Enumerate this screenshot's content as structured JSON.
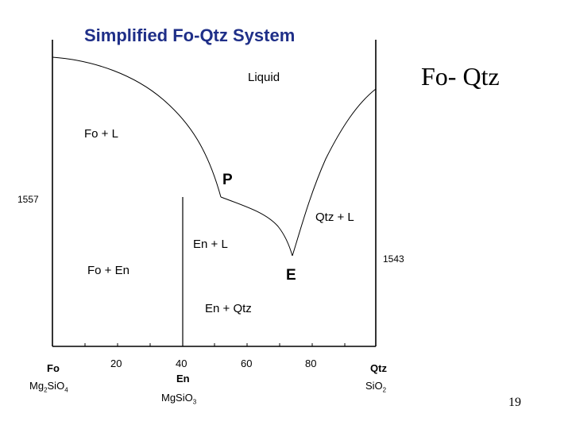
{
  "diagram": {
    "title": "Simplified Fo-Qtz System",
    "fields": {
      "liquid": "Liquid",
      "fo_l": "Fo + L",
      "en_l": "En + L",
      "fo_en": "Fo + En",
      "en_qtz": "En + Qtz",
      "qtz_l": "Qtz + L"
    },
    "points": {
      "peritectic": "P",
      "eutectic": "E"
    },
    "temperatures": {
      "left": "1557",
      "right": "1543"
    },
    "x_ticks": [
      "20",
      "40",
      "60",
      "80"
    ],
    "end_members": {
      "fo": {
        "name": "Fo",
        "formula_main": "Mg",
        "formula_sub1": "2",
        "formula_mid": "SiO",
        "formula_sub2": "4"
      },
      "en": {
        "name": "En",
        "formula_main": "MgSiO",
        "formula_sub": "3"
      },
      "qtz": {
        "name": "Qtz",
        "formula_main": "SiO",
        "formula_sub": "2"
      }
    }
  },
  "slide": {
    "heading": "Fo- Qtz",
    "page_number": "19"
  },
  "colors": {
    "title": "#1f2f88",
    "lines": "#000000"
  }
}
